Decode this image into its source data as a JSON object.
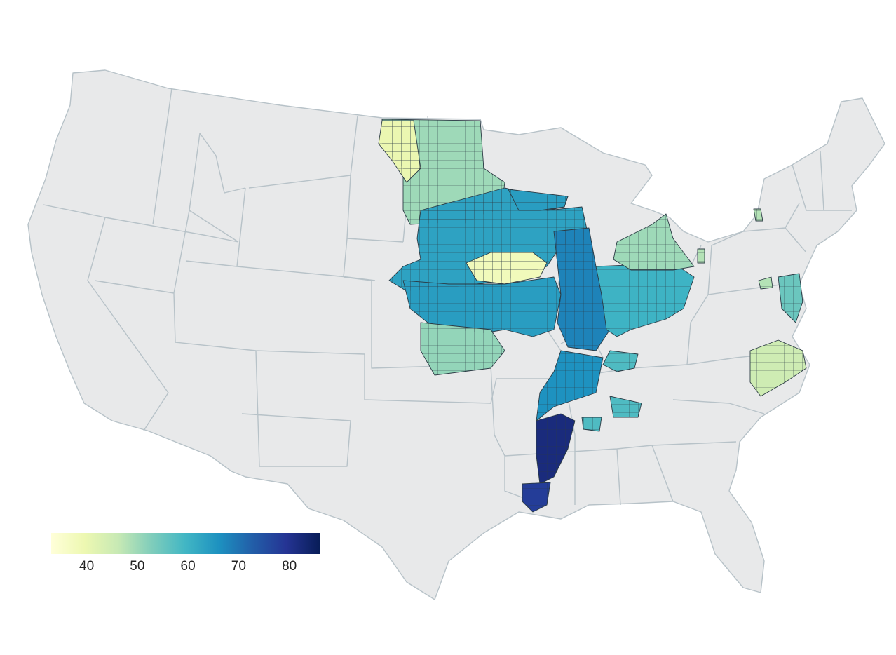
{
  "map": {
    "type": "choropleth",
    "geography": "contiguous-us-counties",
    "colorscale": [
      "#ffffd9",
      "#edf8b1",
      "#c7e9b4",
      "#7fcdbb",
      "#41b6c4",
      "#1d91c0",
      "#225ea8",
      "#253494",
      "#081d58"
    ],
    "range": [
      33,
      86
    ],
    "background_fill": "#e8e9ea",
    "border_color": "#b7c2c8"
  },
  "colorbar": {
    "ticks": [
      {
        "label": "40",
        "value": 40
      },
      {
        "label": "50",
        "value": 50
      },
      {
        "label": "60",
        "value": 60
      },
      {
        "label": "70",
        "value": 70
      },
      {
        "label": "80",
        "value": 80
      }
    ]
  },
  "regions": [
    {
      "id": "northern-plains",
      "value": 50
    },
    {
      "id": "north-dakota-nw",
      "value": 40
    },
    {
      "id": "iowa-minnesota",
      "value": 63
    },
    {
      "id": "central-band",
      "value": 38
    },
    {
      "id": "kansas-missouri",
      "value": 64
    },
    {
      "id": "kansas-south",
      "value": 51
    },
    {
      "id": "illinois",
      "value": 68
    },
    {
      "id": "indiana-ohio",
      "value": 60
    },
    {
      "id": "ohio-north",
      "value": 50
    },
    {
      "id": "wisconsin",
      "value": 64
    },
    {
      "id": "delta-north",
      "value": 66
    },
    {
      "id": "delta-south",
      "value": 82
    },
    {
      "id": "louisiana",
      "value": 78
    },
    {
      "id": "kentucky-tennessee",
      "value": 58
    },
    {
      "id": "north-carolina",
      "value": 45
    },
    {
      "id": "delmarva",
      "value": 55
    },
    {
      "id": "pennsylvania-east",
      "value": 48
    }
  ]
}
